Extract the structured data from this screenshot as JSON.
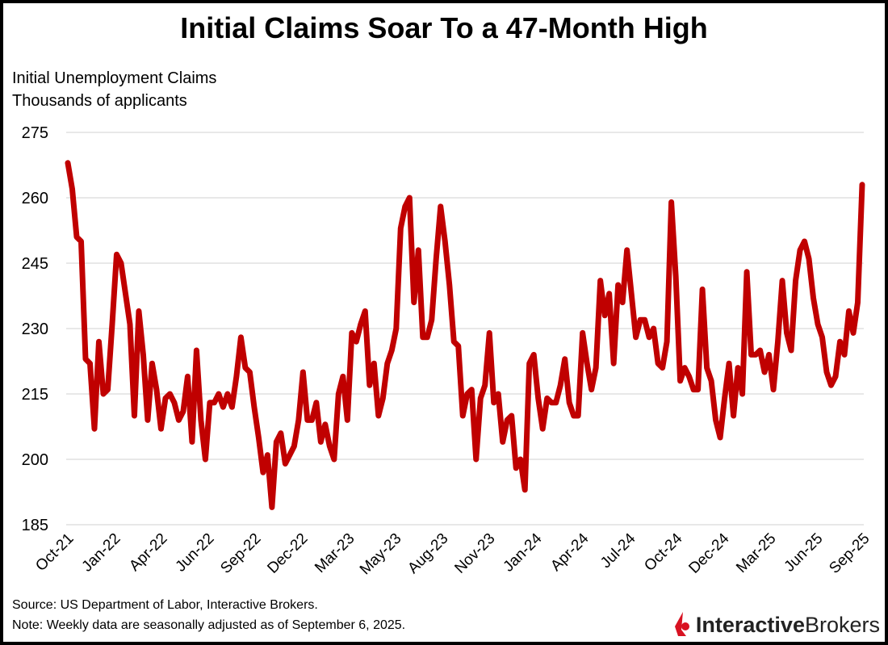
{
  "chart_data": {
    "type": "line",
    "title": "Initial Claims Soar To a 47-Month High",
    "ylabel_lines": [
      "Initial Unemployment Claims",
      "Thousands of applicants"
    ],
    "ylim": [
      185,
      275
    ],
    "yticks": [
      185,
      200,
      215,
      230,
      245,
      260,
      275
    ],
    "xtick_labels": [
      "Oct-21",
      "Jan-22",
      "Apr-22",
      "Jun-22",
      "Sep-22",
      "Dec-22",
      "Mar-23",
      "May-23",
      "Aug-23",
      "Nov-23",
      "Jan-24",
      "Apr-24",
      "Jul-24",
      "Oct-24",
      "Dec-24",
      "Mar-25",
      "Jun-25",
      "Sep-25"
    ],
    "grid": true,
    "frequency": "weekly",
    "line_color": "#c00000",
    "values": [
      268,
      262,
      251,
      250,
      223,
      222,
      207,
      227,
      215,
      216,
      231,
      247,
      245,
      238,
      231,
      210,
      234,
      224,
      209,
      222,
      216,
      207,
      214,
      215,
      213,
      209,
      211,
      219,
      204,
      225,
      209,
      200,
      213,
      213,
      215,
      212,
      215,
      212,
      219,
      228,
      221,
      220,
      212,
      205,
      197,
      201,
      189,
      204,
      206,
      199,
      201,
      203,
      209,
      220,
      209,
      209,
      213,
      204,
      208,
      203,
      200,
      215,
      219,
      209,
      229,
      227,
      231,
      234,
      217,
      222,
      210,
      214,
      222,
      225,
      230,
      253,
      258,
      260,
      236,
      248,
      228,
      228,
      232,
      246,
      258,
      250,
      240,
      227,
      226,
      210,
      215,
      216,
      200,
      214,
      217,
      229,
      213,
      215,
      204,
      209,
      210,
      198,
      200,
      193,
      222,
      224,
      214,
      207,
      214,
      213,
      213,
      217,
      223,
      213,
      210,
      210,
      229,
      222,
      216,
      221,
      241,
      233,
      238,
      222,
      240,
      236,
      248,
      238,
      228,
      232,
      232,
      228,
      230,
      222,
      221,
      227,
      259,
      242,
      218,
      221,
      219,
      216,
      216,
      239,
      221,
      218,
      209,
      205,
      214,
      222,
      210,
      221,
      215,
      243,
      224,
      224,
      225,
      220,
      224,
      216,
      227,
      241,
      229,
      225,
      241,
      248,
      250,
      246,
      237,
      231,
      228,
      220,
      217,
      219,
      227,
      224,
      234,
      229,
      236,
      263
    ]
  },
  "footer": {
    "source": "Source: US Department of Labor, Interactive Brokers.",
    "note": "Note: Weekly data are seasonally adjusted as of September 6, 2025."
  },
  "logo": {
    "part1": "Interactive",
    "part2": "Brokers",
    "color": "#d81222"
  }
}
